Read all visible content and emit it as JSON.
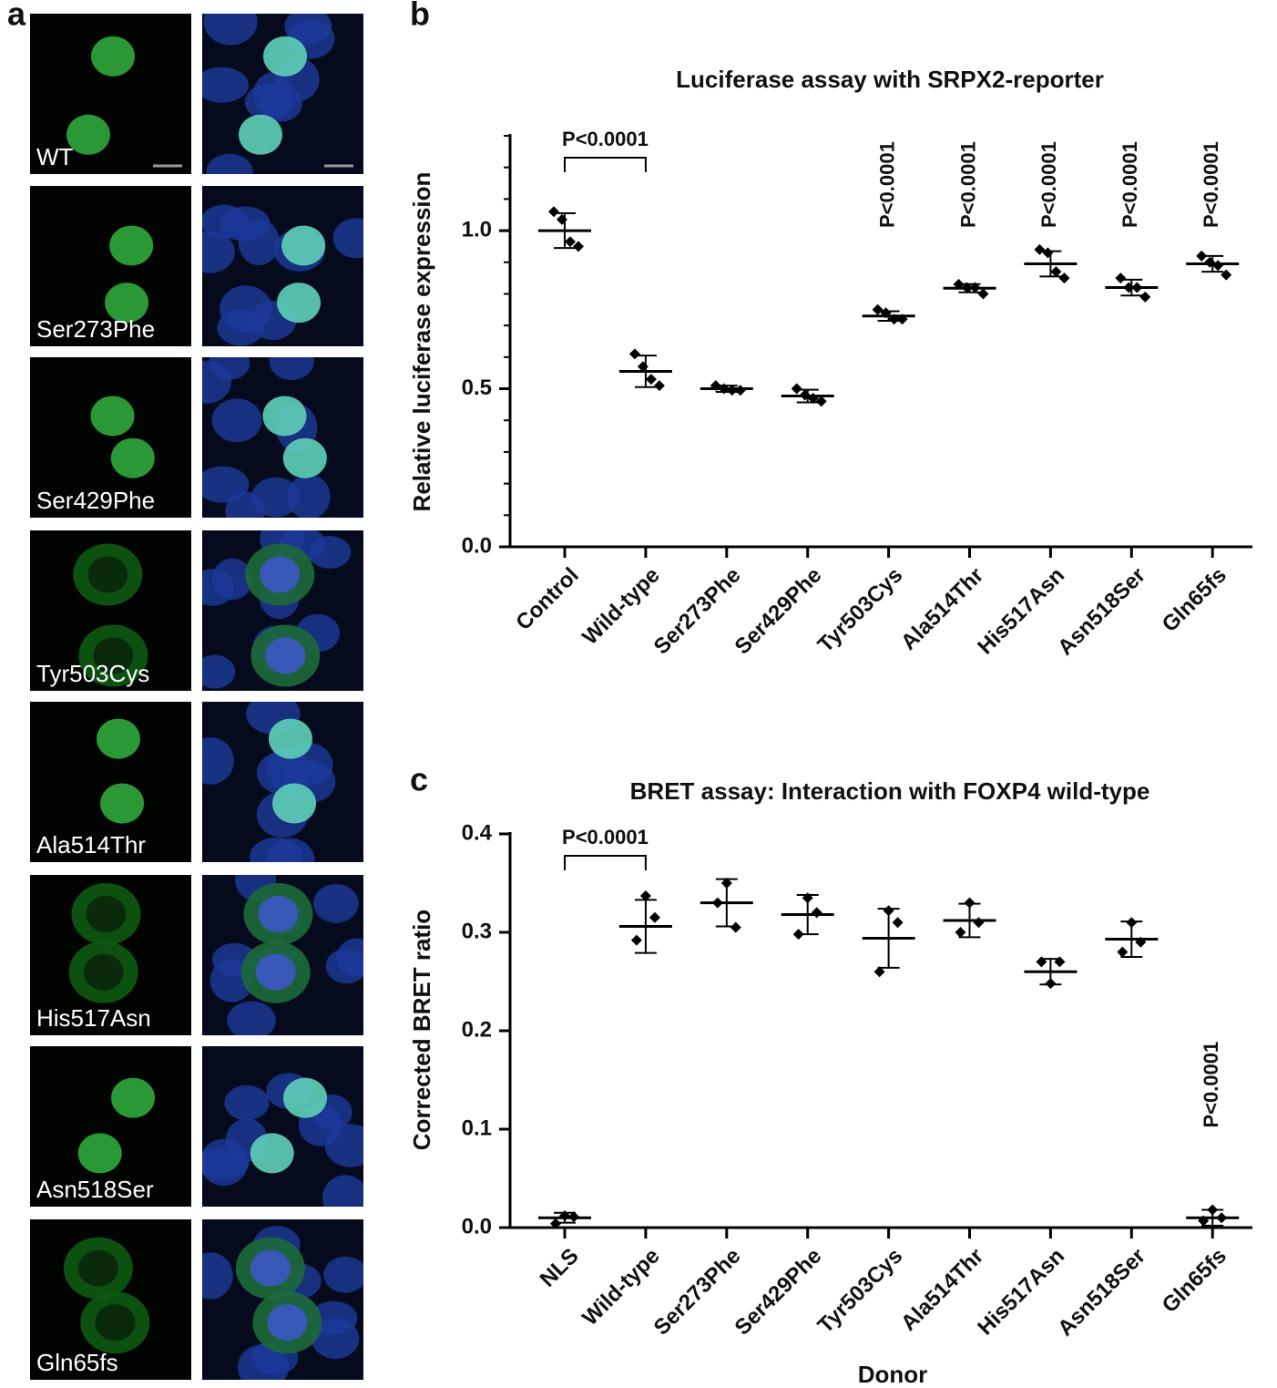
{
  "panel_a": {
    "label": "a",
    "images": [
      {
        "label": "WT"
      },
      {
        "label": "Ser273Phe"
      },
      {
        "label": "Ser429Phe"
      },
      {
        "label": "Tyr503Cys"
      },
      {
        "label": "Ala514Thr"
      },
      {
        "label": "His517Asn"
      },
      {
        "label": "Asn518Ser"
      },
      {
        "label": "Gln65fs"
      }
    ]
  },
  "chart_data": [
    {
      "type": "dot",
      "panel": "b",
      "title": "Luciferase assay with SRPX2-reporter",
      "ylabel": "Relative luciferase expression",
      "categories": [
        "Control",
        "Wild-type",
        "Ser273Phe",
        "Ser429Phe",
        "Tyr503Cys",
        "Ala514Thr",
        "His517Asn",
        "Asn518Ser",
        "Gln65fs"
      ],
      "points": [
        [
          1.06,
          1.035,
          0.965,
          0.95
        ],
        [
          0.61,
          0.57,
          0.53,
          0.51
        ],
        [
          0.51,
          0.5,
          0.495,
          0.495
        ],
        [
          0.5,
          0.48,
          0.47,
          0.46
        ],
        [
          0.75,
          0.74,
          0.72,
          0.72
        ],
        [
          0.83,
          0.82,
          0.82,
          0.8
        ],
        [
          0.94,
          0.93,
          0.87,
          0.85
        ],
        [
          0.85,
          0.82,
          0.82,
          0.79
        ],
        [
          0.92,
          0.9,
          0.89,
          0.86
        ]
      ],
      "means": [
        1.0,
        0.555,
        0.5,
        0.477,
        0.73,
        0.818,
        0.895,
        0.82,
        0.895
      ],
      "sd": [
        0.055,
        0.05,
        0.01,
        0.02,
        0.015,
        0.013,
        0.04,
        0.025,
        0.025
      ],
      "significance": [
        null,
        null,
        null,
        null,
        "P<0.0001",
        "P<0.0001",
        "P<0.0001",
        "P<0.0001",
        "P<0.0001"
      ],
      "comparisons": [
        {
          "categories": [
            "Control",
            "Wild-type"
          ],
          "label": "P<0.0001"
        }
      ],
      "ylim": [
        0,
        1.3
      ],
      "yticks": [
        {
          "value": 0,
          "label": "0.0"
        },
        0.5,
        {
          "value": 1,
          "label": "1.0"
        }
      ],
      "yminorticks": [
        0.1,
        0.2,
        0.3,
        0.4,
        0.6,
        0.7,
        0.8,
        0.9,
        1.1,
        1.2,
        1.3
      ],
      "color": "#000000"
    },
    {
      "type": "dot",
      "panel": "c",
      "title": "BRET assay: Interaction with FOXP4 wild-type",
      "ylabel": "Corrected BRET ratio",
      "xlabel": "Donor",
      "categories": [
        "NLS",
        "Wild-type",
        "Ser273Phe",
        "Ser429Phe",
        "Tyr503Cys",
        "Ala514Thr",
        "His517Asn",
        "Asn518Ser",
        "Gln65fs"
      ],
      "points": [
        [
          0.004,
          0.012,
          0.011
        ],
        [
          0.292,
          0.337,
          0.315
        ],
        [
          0.33,
          0.35,
          0.305
        ],
        [
          0.298,
          0.335,
          0.32
        ],
        [
          0.26,
          0.322,
          0.31
        ],
        [
          0.3,
          0.33,
          0.31
        ],
        [
          0.27,
          0.248,
          0.27
        ],
        [
          0.28,
          0.31,
          0.29
        ],
        [
          0.007,
          0.018,
          0.01
        ]
      ],
      "means": [
        0.01,
        0.306,
        0.33,
        0.318,
        0.294,
        0.312,
        0.26,
        0.293,
        0.01
      ],
      "sd": [
        0.005,
        0.027,
        0.024,
        0.02,
        0.03,
        0.017,
        0.013,
        0.018,
        0.008
      ],
      "significance": [
        null,
        null,
        null,
        null,
        null,
        null,
        null,
        null,
        "P<0.0001"
      ],
      "comparisons": [
        {
          "categories": [
            "NLS",
            "Wild-type"
          ],
          "label": "P<0.0001"
        }
      ],
      "ylim": [
        0,
        0.4
      ],
      "yticks": [
        {
          "value": 0,
          "label": "0.0"
        },
        0.1,
        0.2,
        0.3,
        0.4
      ],
      "color": "#000000"
    }
  ]
}
